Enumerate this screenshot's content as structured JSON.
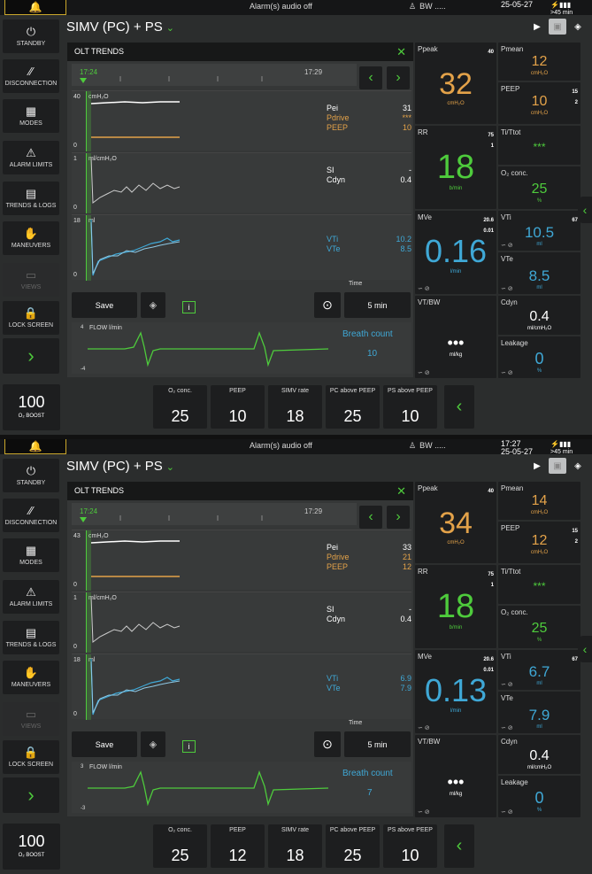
{
  "screens": [
    {
      "topbar": {
        "bell": "🔔",
        "alarm_text": "Alarm(s) audio off",
        "bw": "BW .....",
        "time": "",
        "date": "25-05-27",
        "battery_min": ">45 min"
      },
      "mode": "SIMV (PC) + PS",
      "sidebar": [
        "STANDBY",
        "DISCONNECTION",
        "MODES",
        "ALARM LIMITS",
        "TRENDS & LOGS",
        "MANEUVERS",
        "VIEWS",
        "LOCK SCREEN"
      ],
      "olt": {
        "title": "OLT TRENDS",
        "t_start": "17:24",
        "t_end": "17:29",
        "p1": {
          "max": "40",
          "min": "0",
          "unit": "cmH₂O",
          "legend": [
            [
              "Pei",
              "31",
              "white"
            ],
            [
              "Pdrive",
              "***",
              "orange"
            ],
            [
              "PEEP",
              "10",
              "orange"
            ]
          ]
        },
        "p2": {
          "max": "1",
          "min": "0",
          "unit": "ml/cmH₂O",
          "legend": [
            [
              "SI",
              "-",
              "white"
            ],
            [
              "Cdyn",
              "0.4",
              "white"
            ]
          ]
        },
        "p3": {
          "max": "18",
          "min": "0",
          "unit": "ml",
          "legend": [
            [
              "VTi",
              "10.2",
              "blue"
            ],
            [
              "VTe",
              "8.5",
              "blue"
            ]
          ]
        },
        "save": "Save",
        "time_label": "Time",
        "time_value": "5 min",
        "flow": {
          "unit": "FLOW l/min",
          "max": "4",
          "min": "-4"
        },
        "breath_count_label": "Breath count",
        "breath_count": "10"
      },
      "tiles": {
        "ppeak": {
          "label": "Ppeak",
          "limit": "40",
          "value": "32",
          "unit": "cmH₂O"
        },
        "pmean": {
          "label": "Pmean",
          "value": "12",
          "unit": "cmH₂O"
        },
        "peep": {
          "label": "PEEP",
          "lim_hi": "15",
          "lim_lo": "2",
          "value": "10",
          "unit": "cmH₂O"
        },
        "rr": {
          "label": "RR",
          "lim_hi": "75",
          "lim_lo": "1",
          "value": "18",
          "unit": "b/min"
        },
        "titot": {
          "label": "Ti/Ttot",
          "value": "***"
        },
        "o2": {
          "label": "O₂ conc.",
          "value": "25",
          "unit": "%"
        },
        "mve": {
          "label": "MVe",
          "lim_hi": "20.6",
          "lim_lo": "0.01",
          "value": "0.16",
          "unit": "l/min"
        },
        "vti": {
          "label": "VTi",
          "limit": "67",
          "value": "10.5",
          "unit": "ml"
        },
        "vte": {
          "label": "VTe",
          "value": "8.5",
          "unit": "ml"
        },
        "vtbw": {
          "label": "VT/BW",
          "value": "•••",
          "unit": "ml/kg"
        },
        "cdyn": {
          "label": "Cdyn",
          "value": "0.4",
          "unit": "ml/cmH₂O"
        },
        "leak": {
          "label": "Leakage",
          "value": "0",
          "unit": "%"
        }
      },
      "bottom": {
        "boost_value": "100",
        "boost_label": "O₂ BOOST",
        "settings": [
          [
            "O₂ conc.",
            "25"
          ],
          [
            "PEEP",
            "10"
          ],
          [
            "SIMV rate",
            "18"
          ],
          [
            "PC above PEEP",
            "25"
          ],
          [
            "PS above PEEP",
            "10"
          ]
        ]
      }
    },
    {
      "topbar": {
        "bell": "🔔",
        "alarm_text": "Alarm(s) audio off",
        "bw": "BW .....",
        "time": "17:27",
        "date": "25-05-27",
        "battery_min": ">45 min"
      },
      "mode": "SIMV (PC) + PS",
      "sidebar": [
        "STANDBY",
        "DISCONNECTION",
        "MODES",
        "ALARM LIMITS",
        "TRENDS & LOGS",
        "MANEUVERS",
        "VIEWS",
        "LOCK SCREEN"
      ],
      "olt": {
        "title": "OLT TRENDS",
        "t_start": "17:24",
        "t_end": "17:29",
        "p1": {
          "max": "43",
          "min": "0",
          "unit": "cmH₂O",
          "legend": [
            [
              "Pei",
              "33",
              "white"
            ],
            [
              "Pdrive",
              "21",
              "orange"
            ],
            [
              "PEEP",
              "12",
              "orange"
            ]
          ]
        },
        "p2": {
          "max": "1",
          "min": "0",
          "unit": "ml/cmH₂O",
          "legend": [
            [
              "SI",
              "-",
              "white"
            ],
            [
              "Cdyn",
              "0.4",
              "white"
            ]
          ]
        },
        "p3": {
          "max": "18",
          "min": "0",
          "unit": "ml",
          "legend": [
            [
              "VTi",
              "6.9",
              "blue"
            ],
            [
              "VTe",
              "7.9",
              "blue"
            ]
          ]
        },
        "save": "Save",
        "time_label": "Time",
        "time_value": "5 min",
        "flow": {
          "unit": "FLOW l/min",
          "max": "3",
          "min": "-3"
        },
        "breath_count_label": "Breath count",
        "breath_count": "7"
      },
      "tiles": {
        "ppeak": {
          "label": "Ppeak",
          "limit": "40",
          "value": "34",
          "unit": "cmH₂O"
        },
        "pmean": {
          "label": "Pmean",
          "value": "14",
          "unit": "cmH₂O"
        },
        "peep": {
          "label": "PEEP",
          "lim_hi": "15",
          "lim_lo": "2",
          "value": "12",
          "unit": "cmH₂O"
        },
        "rr": {
          "label": "RR",
          "lim_hi": "75",
          "lim_lo": "1",
          "value": "18",
          "unit": "b/min"
        },
        "titot": {
          "label": "Ti/Ttot",
          "value": "***"
        },
        "o2": {
          "label": "O₂ conc.",
          "value": "25",
          "unit": "%"
        },
        "mve": {
          "label": "MVe",
          "lim_hi": "20.6",
          "lim_lo": "0.01",
          "value": "0.13",
          "unit": "l/min"
        },
        "vti": {
          "label": "VTi",
          "limit": "67",
          "value": "6.7",
          "unit": "ml"
        },
        "vte": {
          "label": "VTe",
          "value": "7.9",
          "unit": "ml"
        },
        "vtbw": {
          "label": "VT/BW",
          "value": "•••",
          "unit": "ml/kg"
        },
        "cdyn": {
          "label": "Cdyn",
          "value": "0.4",
          "unit": "ml/cmH₂O"
        },
        "leak": {
          "label": "Leakage",
          "value": "0",
          "unit": "%"
        }
      },
      "bottom": {
        "boost_value": "100",
        "boost_label": "O₂ BOOST",
        "settings": [
          [
            "O₂ conc.",
            "25"
          ],
          [
            "PEEP",
            "12"
          ],
          [
            "SIMV rate",
            "18"
          ],
          [
            "PC above PEEP",
            "25"
          ],
          [
            "PS above PEEP",
            "10"
          ]
        ]
      }
    }
  ],
  "colors": {
    "green": "#4ecb3c",
    "orange": "#e3a249",
    "blue": "#3fa8d6",
    "white": "#ffffff"
  },
  "icons": [
    "bell-icon",
    "power-icon",
    "disconnection-icon",
    "modes-grid-icon",
    "alarm-limits-icon",
    "trends-logs-icon",
    "maneuvers-hand-icon",
    "views-icon",
    "lock-icon",
    "chevron-right-icon",
    "camera-icon",
    "layers-icon",
    "close-icon",
    "target-icon",
    "info-icon",
    "person-icon",
    "battery-icon"
  ]
}
